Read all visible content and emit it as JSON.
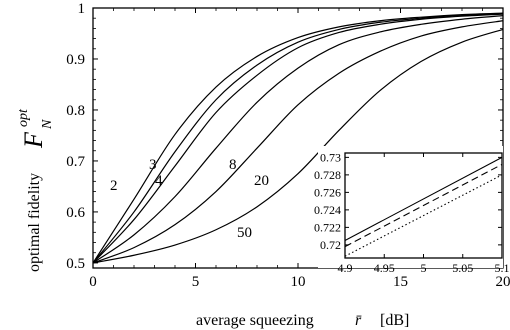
{
  "chart_data": [
    {
      "type": "line",
      "xlabel": "average squeezing",
      "xlabel_symbol": "r̄",
      "xlabel_unit": "[dB]",
      "ylabel": "optimal fidelity",
      "ylabel_symbol": "F",
      "ylabel_sub": "N",
      "ylabel_sup": "opt",
      "xlim": [
        0,
        20
      ],
      "ylim": [
        0.49,
        1.0
      ],
      "xticks": [
        "0",
        "5",
        "10",
        "15",
        "20"
      ],
      "yticks": [
        "0.5",
        "0.6",
        "0.7",
        "0.8",
        "0.9",
        "1"
      ],
      "grid": false,
      "legend": "none",
      "series": [
        {
          "name": "2",
          "x": [
            0,
            2,
            4,
            6,
            8,
            10,
            12,
            14,
            16,
            18,
            20
          ],
          "y": [
            0.5,
            0.625,
            0.752,
            0.845,
            0.905,
            0.942,
            0.963,
            0.975,
            0.982,
            0.987,
            0.99
          ]
        },
        {
          "name": "3",
          "x": [
            0,
            2,
            4,
            6,
            8,
            10,
            12,
            14,
            16,
            18,
            20
          ],
          "y": [
            0.5,
            0.6,
            0.718,
            0.82,
            0.888,
            0.933,
            0.958,
            0.972,
            0.98,
            0.986,
            0.989
          ]
        },
        {
          "name": "4",
          "x": [
            0,
            2,
            4,
            6,
            8,
            10,
            12,
            14,
            16,
            18,
            20
          ],
          "y": [
            0.5,
            0.585,
            0.69,
            0.795,
            0.868,
            0.922,
            0.952,
            0.968,
            0.978,
            0.984,
            0.988
          ]
        },
        {
          "name": "8",
          "x": [
            0,
            2,
            4,
            6,
            8,
            10,
            12,
            14,
            16,
            18,
            20
          ],
          "y": [
            0.5,
            0.555,
            0.63,
            0.725,
            0.815,
            0.882,
            0.928,
            0.953,
            0.968,
            0.978,
            0.985
          ]
        },
        {
          "name": "20",
          "x": [
            0,
            2,
            4,
            6,
            8,
            10,
            12,
            14,
            16,
            18,
            20
          ],
          "y": [
            0.5,
            0.53,
            0.575,
            0.64,
            0.725,
            0.81,
            0.872,
            0.915,
            0.945,
            0.963,
            0.975
          ]
        },
        {
          "name": "50",
          "x": [
            0,
            2,
            4,
            6,
            8,
            10,
            12,
            14,
            16,
            18,
            20
          ],
          "y": [
            0.5,
            0.515,
            0.535,
            0.565,
            0.61,
            0.675,
            0.76,
            0.838,
            0.895,
            0.933,
            0.958
          ]
        }
      ],
      "curve_labels": [
        "2",
        "3",
        "4",
        "8",
        "20",
        "50"
      ]
    },
    {
      "type": "line",
      "inset": true,
      "xlim": [
        4.9,
        5.1
      ],
      "ylim": [
        0.7185,
        0.7305
      ],
      "xticks": [
        "4.9",
        "4.95",
        "5",
        "5.05",
        "5.1"
      ],
      "yticks": [
        "0.72",
        "0.722",
        "0.724",
        "0.726",
        "0.728",
        "0.73"
      ],
      "series": [
        {
          "style": "solid",
          "x": [
            4.9,
            5.1
          ],
          "y": [
            0.7205,
            0.73
          ]
        },
        {
          "style": "dashed",
          "x": [
            4.9,
            5.1
          ],
          "y": [
            0.7198,
            0.7292
          ]
        },
        {
          "style": "dotted",
          "x": [
            4.9,
            5.1
          ],
          "y": [
            0.7187,
            0.728
          ]
        }
      ]
    }
  ]
}
